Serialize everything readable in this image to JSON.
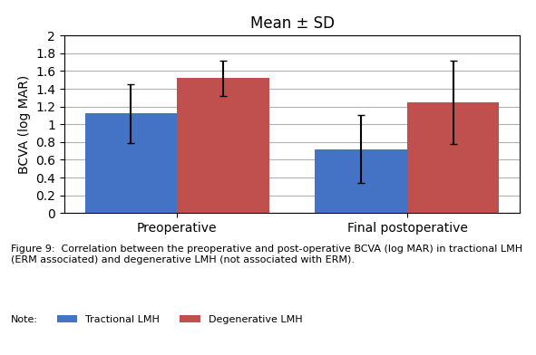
{
  "chart_data": {
    "type": "bar",
    "title": "Mean ± SD",
    "y_label": "BCVA (log MAR)",
    "categories": [
      "Preoperative",
      "Final postoperative"
    ],
    "series": [
      {
        "name": "Tractional LMH",
        "color": "#4472C4",
        "values": [
          1.12,
          0.72
        ],
        "errors": [
          0.33,
          0.38
        ]
      },
      {
        "name": "Degenerative LMH",
        "color": "#C0504D",
        "values": [
          1.52,
          1.25
        ],
        "errors": [
          0.2,
          0.47
        ]
      }
    ],
    "ylim": [
      0,
      2.0
    ],
    "yticks": [
      0,
      0.2,
      0.4,
      0.6,
      0.8,
      1,
      1.2,
      1.4,
      1.6,
      1.8,
      2
    ],
    "grid": true,
    "annotations": [
      "Figure 9:  Correlation between the preoperative and post-operative BCVA (log MAR) in tractional LMH (ERM associated) and degenerative LMH (not associated with ERM).",
      "Note:"
    ]
  }
}
